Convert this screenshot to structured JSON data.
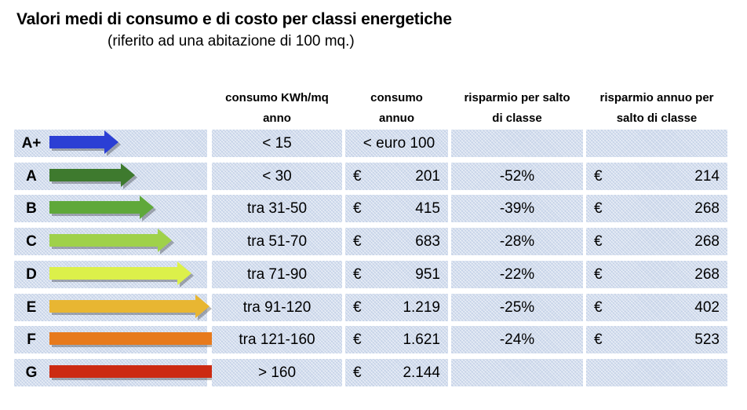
{
  "title": "Valori medi di consumo e di costo per classi energetiche",
  "subtitle": "(riferito ad una abitazione di 100 mq.)",
  "headers": {
    "consumption_line1": "consumo KWh/mq",
    "consumption_line2": "anno",
    "annual_line1": "consumo",
    "annual_line2": "annuo",
    "saving_line1": "risparmio per salto",
    "saving_line2": "di classe",
    "yearly_saving_line1": "risparmio annuo per",
    "yearly_saving_line2": "salto di classe"
  },
  "rows": [
    {
      "class": "A+",
      "arrow_color": "#2b3fd4",
      "consumption": "< 15",
      "annual_text": "< euro 100",
      "annual_currency": "",
      "annual_value": "",
      "saving": "",
      "yearly_currency": "",
      "yearly_value": ""
    },
    {
      "class": "A",
      "arrow_color": "#3e7a2e",
      "consumption": "< 30",
      "annual_text": "",
      "annual_currency": "€",
      "annual_value": "201",
      "saving": "-52%",
      "yearly_currency": "€",
      "yearly_value": "214"
    },
    {
      "class": "B",
      "arrow_color": "#5fa83a",
      "consumption": "tra 31-50",
      "annual_text": "",
      "annual_currency": "€",
      "annual_value": "415",
      "saving": "-39%",
      "yearly_currency": "€",
      "yearly_value": "268"
    },
    {
      "class": "C",
      "arrow_color": "#9fd14a",
      "consumption": "tra 51-70",
      "annual_text": "",
      "annual_currency": "€",
      "annual_value": "683",
      "saving": "-28%",
      "yearly_currency": "€",
      "yearly_value": "268"
    },
    {
      "class": "D",
      "arrow_color": "#dcf04a",
      "consumption": "tra 71-90",
      "annual_text": "",
      "annual_currency": "€",
      "annual_value": "951",
      "saving": "-22%",
      "yearly_currency": "€",
      "yearly_value": "268"
    },
    {
      "class": "E",
      "arrow_color": "#e8b632",
      "consumption": "tra 91-120",
      "annual_text": "",
      "annual_currency": "€",
      "annual_value": "1.219",
      "saving": "-25%",
      "yearly_currency": "€",
      "yearly_value": "402"
    },
    {
      "class": "F",
      "arrow_color": "#e77a1c",
      "consumption": "tra 121-160",
      "annual_text": "",
      "annual_currency": "€",
      "annual_value": "1.621",
      "saving": "-24%",
      "yearly_currency": "€",
      "yearly_value": "523"
    },
    {
      "class": "G",
      "arrow_color": "#cc2a12",
      "consumption": "> 160",
      "annual_text": "",
      "annual_currency": "€",
      "annual_value": "2.144",
      "saving": "",
      "yearly_currency": "",
      "yearly_value": ""
    }
  ]
}
